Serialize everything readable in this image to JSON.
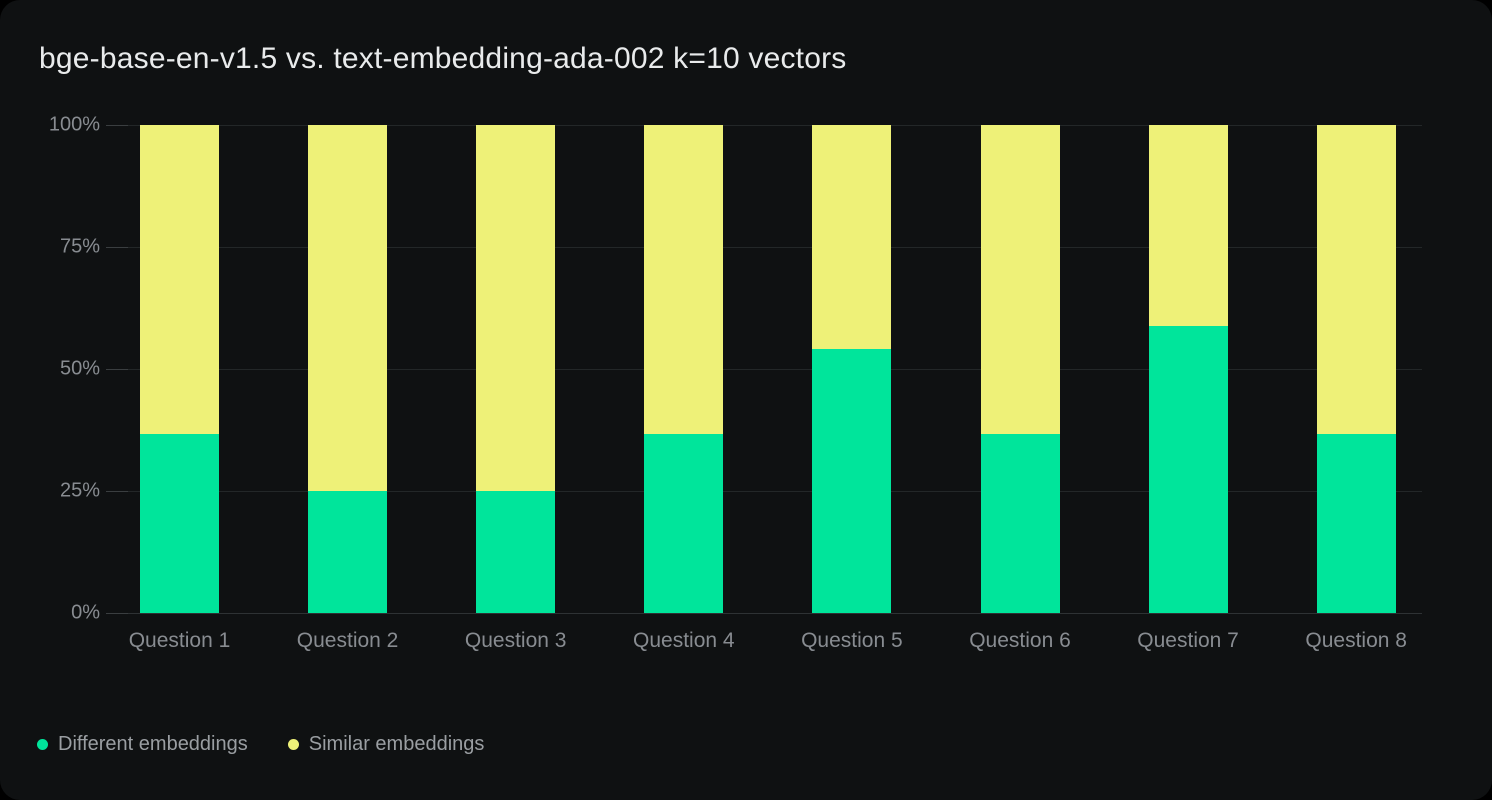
{
  "card": {
    "title": "bge-base-en-v1.5 vs. text-embedding-ada-002 k=10 vectors"
  },
  "chart_data": {
    "type": "bar",
    "stacked": true,
    "title": "bge-base-en-v1.5 vs. text-embedding-ada-002 k=10 vectors",
    "categories": [
      "Question 1",
      "Question 2",
      "Question 3",
      "Question 4",
      "Question 5",
      "Question 6",
      "Question 7",
      "Question 8"
    ],
    "series": [
      {
        "name": "Different embeddings",
        "color": "#00e59b",
        "values": [
          36.6,
          25,
          25,
          36.6,
          54.2,
          36.6,
          58.9,
          36.6
        ]
      },
      {
        "name": "Similar embeddings",
        "color": "#eef178",
        "values": [
          63.4,
          75,
          75,
          63.4,
          45.8,
          63.4,
          41.1,
          63.4
        ]
      }
    ],
    "xlabel": "",
    "ylabel": "",
    "unit": "%",
    "y_axis": {
      "min": 0,
      "max": 100,
      "tick_labels": [
        "0%",
        "25%",
        "50%",
        "75%",
        "100%"
      ],
      "tick_values": [
        0,
        25,
        50,
        75,
        100
      ]
    },
    "grid": true,
    "legend_position": "bottom-left"
  },
  "colors": {
    "background": "#0f1112",
    "page_behind": "#000000",
    "title_text": "#e9ebec",
    "axis_text": "#888c91",
    "legend_text": "#9a9ea2",
    "gridline": "#232728",
    "series_different": "#00e59b",
    "series_similar": "#eef178"
  }
}
